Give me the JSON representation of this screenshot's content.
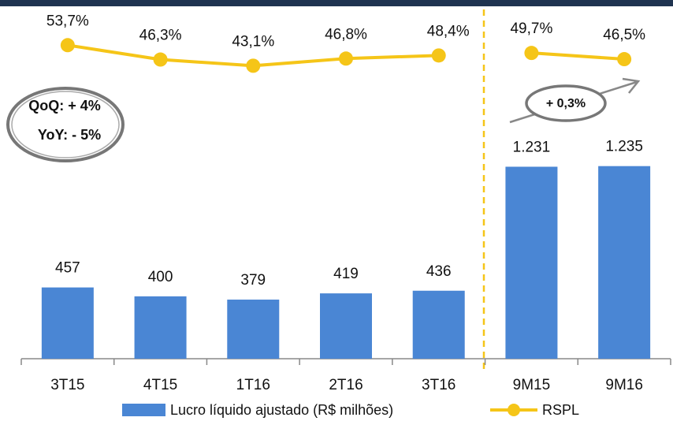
{
  "chart_data": {
    "type": "bar",
    "categories": [
      "3T15",
      "4T15",
      "1T16",
      "2T16",
      "3T16",
      "9M15",
      "9M16"
    ],
    "series": [
      {
        "name": "Lucro líquido ajustado (R$ milhões)",
        "color": "#4a86d4",
        "type": "bar",
        "values": [
          457,
          400,
          379,
          419,
          436,
          1231,
          1235
        ],
        "value_labels": [
          "457",
          "400",
          "379",
          "419",
          "436",
          "1.231",
          "1.235"
        ]
      },
      {
        "name": "RSPL",
        "color": "#f5c518",
        "type": "line",
        "axis": "y2",
        "values": [
          53.7,
          46.3,
          43.1,
          46.8,
          48.4,
          49.7,
          46.5
        ],
        "value_labels": [
          "53,7%",
          "46,3%",
          "43,1%",
          "46,8%",
          "48,4%",
          "49,7%",
          "46,5%"
        ]
      }
    ],
    "ylim": [
      0,
      2300
    ],
    "y2lim": [
      -108,
      77
    ],
    "annotations": [
      "QoQ: + 4%",
      "YoY: - 5%",
      "+ 0,3%"
    ]
  }
}
